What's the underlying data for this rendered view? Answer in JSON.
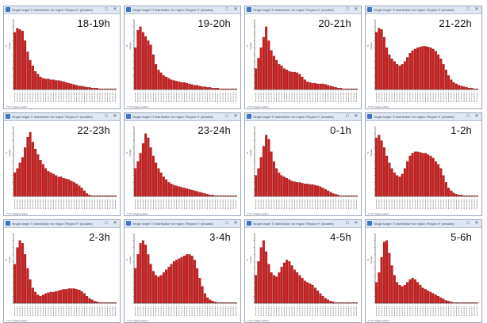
{
  "window_title": "Single target TI distribution for region 'Region H' (shaded)",
  "ylabel": "% images",
  "caption": "TI-TI images pattern",
  "colors": {
    "bar": "#cc1f1f",
    "bar_edge": "#7a0f0f",
    "axis": "#444444",
    "frame": "#9aa6b8",
    "titlebar": "#dfe7f3"
  },
  "icons": {
    "maximize": "maximize-icon",
    "close": "close-icon",
    "window": "window-icon"
  },
  "chart_data": [
    {
      "type": "bar",
      "title": "18-19h",
      "values": [
        82,
        88,
        86,
        84,
        70,
        54,
        42,
        34,
        26,
        22,
        18,
        16,
        15,
        15,
        14,
        14,
        13,
        13,
        12,
        11,
        10,
        9,
        8,
        7,
        6,
        5,
        5,
        4,
        3,
        3,
        2,
        2,
        2,
        1,
        1,
        1,
        1,
        1,
        1,
        1
      ]
    },
    {
      "type": "bar",
      "title": "19-20h",
      "values": [
        60,
        85,
        90,
        82,
        76,
        70,
        64,
        50,
        36,
        28,
        24,
        20,
        18,
        16,
        14,
        13,
        12,
        11,
        10,
        10,
        9,
        8,
        7,
        6,
        6,
        5,
        4,
        4,
        3,
        3,
        2,
        2,
        2,
        1,
        1,
        1,
        1,
        1,
        1,
        1
      ]
    },
    {
      "type": "bar",
      "title": "20-21h",
      "values": [
        30,
        45,
        60,
        75,
        90,
        70,
        56,
        48,
        42,
        36,
        34,
        30,
        28,
        26,
        25,
        25,
        24,
        22,
        18,
        14,
        11,
        10,
        9,
        9,
        8,
        8,
        8,
        7,
        6,
        5,
        4,
        3,
        2,
        2,
        1,
        1,
        1,
        1,
        1,
        1
      ]
    },
    {
      "type": "bar",
      "title": "21-22h",
      "values": [
        82,
        88,
        86,
        75,
        60,
        50,
        44,
        40,
        36,
        34,
        36,
        40,
        46,
        52,
        56,
        58,
        60,
        61,
        62,
        62,
        61,
        60,
        58,
        55,
        50,
        44,
        36,
        28,
        20,
        14,
        10,
        8,
        6,
        5,
        4,
        3,
        2,
        2,
        1,
        1
      ]
    },
    {
      "type": "bar",
      "title": "22-23h",
      "values": [
        34,
        40,
        48,
        56,
        70,
        85,
        92,
        78,
        68,
        60,
        52,
        46,
        40,
        36,
        34,
        32,
        30,
        28,
        28,
        26,
        25,
        24,
        22,
        20,
        18,
        15,
        12,
        8,
        4,
        2,
        1,
        1,
        1,
        1,
        1,
        1,
        1,
        1,
        1,
        1
      ]
    },
    {
      "type": "bar",
      "title": "23-24h",
      "values": [
        40,
        50,
        62,
        76,
        90,
        84,
        70,
        58,
        48,
        40,
        34,
        28,
        24,
        20,
        18,
        16,
        15,
        14,
        13,
        12,
        11,
        10,
        9,
        8,
        7,
        6,
        5,
        4,
        3,
        2,
        2,
        1,
        1,
        1,
        1,
        1,
        1,
        1,
        1,
        1
      ]
    },
    {
      "type": "bar",
      "title": "0-1h",
      "values": [
        30,
        40,
        56,
        72,
        88,
        82,
        64,
        50,
        40,
        34,
        30,
        28,
        26,
        24,
        22,
        21,
        20,
        20,
        19,
        18,
        18,
        17,
        17,
        16,
        15,
        14,
        12,
        10,
        8,
        6,
        4,
        3,
        2,
        1,
        1,
        1,
        1,
        1,
        1,
        1
      ]
    },
    {
      "type": "bar",
      "title": "1-2h",
      "values": [
        84,
        88,
        80,
        70,
        58,
        48,
        40,
        34,
        30,
        28,
        32,
        40,
        50,
        58,
        62,
        64,
        64,
        63,
        62,
        62,
        60,
        58,
        55,
        50,
        46,
        40,
        30,
        20,
        12,
        8,
        5,
        3,
        2,
        2,
        1,
        1,
        1,
        1,
        1,
        1
      ]
    },
    {
      "type": "bar",
      "title": "2-3h",
      "values": [
        56,
        80,
        90,
        86,
        70,
        50,
        34,
        22,
        16,
        12,
        10,
        12,
        14,
        15,
        16,
        16,
        17,
        18,
        19,
        20,
        20,
        21,
        21,
        21,
        20,
        19,
        17,
        14,
        10,
        7,
        5,
        3,
        2,
        1,
        1,
        1,
        1,
        1,
        1,
        1
      ]
    },
    {
      "type": "bar",
      "title": "3-4h",
      "values": [
        50,
        70,
        86,
        90,
        84,
        70,
        56,
        46,
        40,
        38,
        40,
        44,
        48,
        52,
        56,
        60,
        62,
        64,
        66,
        68,
        70,
        70,
        68,
        62,
        50,
        36,
        24,
        14,
        8,
        5,
        3,
        2,
        1,
        1,
        1,
        1,
        1,
        1,
        1,
        1
      ]
    },
    {
      "type": "bar",
      "title": "4-5h",
      "values": [
        40,
        60,
        80,
        90,
        74,
        56,
        44,
        40,
        38,
        44,
        52,
        58,
        62,
        60,
        54,
        48,
        44,
        40,
        36,
        32,
        30,
        28,
        26,
        22,
        18,
        14,
        10,
        7,
        5,
        3,
        2,
        1,
        1,
        1,
        1,
        1,
        1,
        1,
        1,
        1
      ]
    },
    {
      "type": "bar",
      "title": "5-6h",
      "values": [
        30,
        44,
        66,
        88,
        90,
        72,
        54,
        40,
        30,
        26,
        24,
        26,
        30,
        34,
        36,
        34,
        30,
        26,
        22,
        20,
        18,
        16,
        14,
        12,
        10,
        8,
        6,
        4,
        3,
        2,
        1,
        1,
        1,
        1,
        1,
        1,
        1,
        1,
        1,
        1
      ]
    }
  ]
}
